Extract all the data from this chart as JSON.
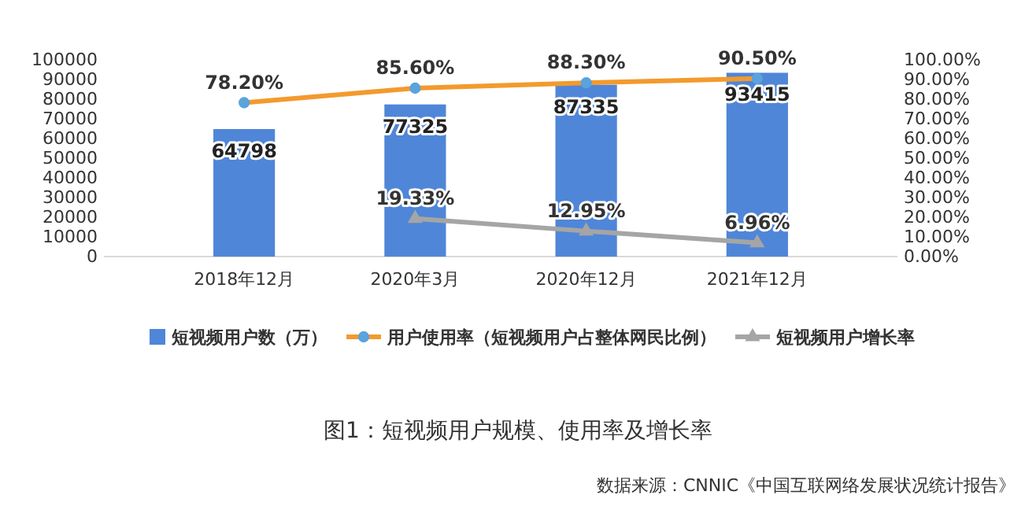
{
  "chart_data": {
    "type": "bar",
    "title": "图1：短视频用户规模、使用率及增长率",
    "annotations": [
      "数据来源：CNNIC《中国互联网络发展状况统计报告》"
    ],
    "categories": [
      "2018年12月",
      "2020年3月",
      "2020年12月",
      "2021年12月"
    ],
    "series": [
      {
        "name": "短视频用户数（万）",
        "color": "#4f86d8",
        "values": [
          64798,
          77325,
          87335,
          93415
        ],
        "value_labels": [
          "64798",
          "77325",
          "87335",
          "93415"
        ]
      },
      {
        "name": "用户使用率（短视频用户占整体网民比例）",
        "type": "line",
        "axis": "y2",
        "color": "#f39a2e",
        "marker": "circle",
        "values": [
          78.2,
          85.6,
          88.3,
          90.5
        ],
        "value_labels": [
          "78.20%",
          "85.60%",
          "88.30%",
          "90.50%"
        ]
      },
      {
        "name": "短视频用户增长率",
        "type": "line",
        "axis": "y2",
        "color": "#a5a5a5",
        "marker": "triangle",
        "values": [
          null,
          19.33,
          12.95,
          6.96
        ],
        "value_labels": [
          null,
          "19.33%",
          "12.95%",
          "6.96%"
        ]
      }
    ],
    "ylim": [
      0,
      100000
    ],
    "yticks": [
      0,
      10000,
      20000,
      30000,
      40000,
      50000,
      60000,
      70000,
      80000,
      90000,
      100000
    ],
    "y2lim": [
      0,
      100
    ],
    "y2ticks": [
      {
        "value": 0,
        "label": "0.00%"
      },
      {
        "value": 10,
        "label": "10.00%"
      },
      {
        "value": 20,
        "label": "20.00%"
      },
      {
        "value": 30,
        "label": "30.00%"
      },
      {
        "value": 40,
        "label": "40.00%"
      },
      {
        "value": 50,
        "label": "50.00%"
      },
      {
        "value": 60,
        "label": "60.00%"
      },
      {
        "value": 70,
        "label": "70.00%"
      },
      {
        "value": 80,
        "label": "80.00%"
      },
      {
        "value": 90,
        "label": "90.00%"
      },
      {
        "value": 100,
        "label": "100.00%"
      }
    ],
    "legend": "bottom",
    "line_style": "solid"
  }
}
